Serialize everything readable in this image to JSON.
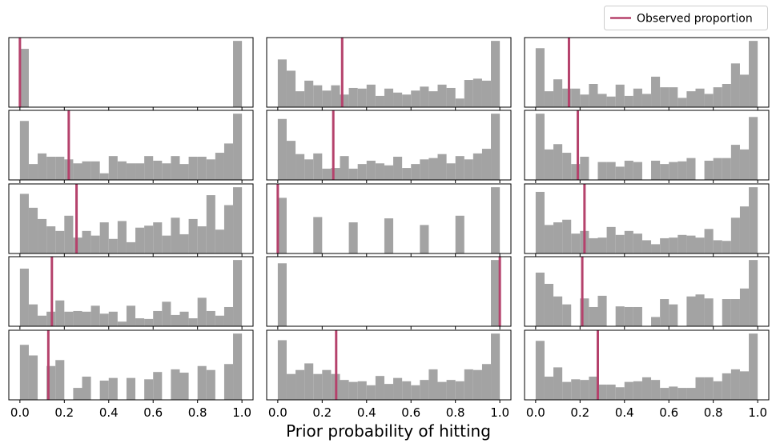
{
  "chart_data": {
    "type": "bar",
    "layout": "5 rows x 3 columns of histograms, shared x axis",
    "xlabel": "Prior probability of hitting",
    "ylabel": "",
    "xlim": [
      -0.05,
      1.05
    ],
    "ylim": [
      0,
      1.05
    ],
    "xticks": [
      0.0,
      0.2,
      0.4,
      0.6,
      0.8,
      1.0
    ],
    "xtick_labels": [
      "0.0",
      "0.2",
      "0.4",
      "0.6",
      "0.8",
      "1.0"
    ],
    "bin_edges_start": 0.0,
    "bin_width": 0.04,
    "bin_count": 25,
    "value_units": "bin height relative to the tallest bin in its panel (y axis unlabeled)",
    "legend": {
      "entries": [
        "Observed proportion"
      ],
      "placement": "top-right"
    },
    "colors": {
      "bars": "#a3a3a3",
      "observed_line": "#b5426c"
    },
    "panels": [
      {
        "row": 1,
        "col": 1,
        "observed": 0.0,
        "values": [
          0.88,
          0,
          0,
          0,
          0,
          0,
          0,
          0,
          0,
          0,
          0,
          0,
          0,
          0,
          0,
          0,
          0,
          0,
          0,
          0,
          0,
          0,
          0,
          0,
          1.0
        ]
      },
      {
        "row": 1,
        "col": 2,
        "observed": 0.29,
        "values": [
          0.72,
          0.55,
          0.24,
          0.4,
          0.33,
          0.25,
          0.33,
          0.19,
          0.29,
          0.28,
          0.34,
          0.17,
          0.28,
          0.22,
          0.19,
          0.25,
          0.31,
          0.24,
          0.34,
          0.29,
          0.13,
          0.41,
          0.43,
          0.4,
          1.0
        ]
      },
      {
        "row": 1,
        "col": 3,
        "observed": 0.15,
        "values": [
          0.89,
          0.24,
          0.42,
          0.28,
          0.28,
          0.19,
          0.35,
          0.2,
          0.16,
          0.34,
          0.17,
          0.28,
          0.2,
          0.46,
          0.3,
          0.3,
          0.14,
          0.24,
          0.28,
          0.2,
          0.3,
          0.35,
          0.66,
          0.49,
          1.0
        ]
      },
      {
        "row": 2,
        "col": 1,
        "observed": 0.22,
        "values": [
          0.89,
          0.24,
          0.4,
          0.35,
          0.35,
          0.31,
          0.25,
          0.28,
          0.28,
          0.1,
          0.36,
          0.28,
          0.25,
          0.25,
          0.36,
          0.29,
          0.25,
          0.36,
          0.24,
          0.35,
          0.35,
          0.31,
          0.41,
          0.55,
          1.0
        ]
      },
      {
        "row": 2,
        "col": 2,
        "observed": 0.25,
        "values": [
          0.92,
          0.59,
          0.39,
          0.31,
          0.4,
          0.17,
          0.18,
          0.36,
          0.17,
          0.24,
          0.29,
          0.25,
          0.22,
          0.35,
          0.18,
          0.24,
          0.31,
          0.33,
          0.39,
          0.25,
          0.36,
          0.31,
          0.4,
          0.47,
          1.0
        ]
      },
      {
        "row": 2,
        "col": 3,
        "observed": 0.19,
        "values": [
          1.0,
          0.46,
          0.54,
          0.41,
          0.24,
          0.35,
          0,
          0.27,
          0.27,
          0.2,
          0.29,
          0.27,
          0,
          0.29,
          0.24,
          0.27,
          0.28,
          0.33,
          0,
          0.29,
          0.33,
          0.33,
          0.53,
          0.46,
          0.95
        ]
      },
      {
        "row": 3,
        "col": 1,
        "observed": 0.255,
        "values": [
          0.9,
          0.69,
          0.52,
          0.41,
          0.34,
          0.57,
          0.24,
          0.34,
          0.27,
          0.47,
          0.22,
          0.49,
          0.17,
          0.39,
          0.42,
          0.47,
          0.27,
          0.54,
          0.29,
          0.52,
          0.41,
          0.88,
          0.36,
          0.73,
          1.0
        ]
      },
      {
        "row": 3,
        "col": 2,
        "observed": 0.0,
        "values": [
          0.84,
          0,
          0,
          0,
          0.55,
          0,
          0,
          0,
          0.47,
          0,
          0,
          0,
          0.53,
          0,
          0,
          0,
          0.43,
          0,
          0,
          0,
          0.57,
          0,
          0,
          0,
          1.0
        ]
      },
      {
        "row": 3,
        "col": 3,
        "observed": 0.22,
        "values": [
          0.93,
          0.43,
          0.47,
          0.51,
          0.3,
          0.34,
          0.23,
          0.24,
          0.4,
          0.28,
          0.34,
          0.3,
          0.2,
          0.14,
          0.23,
          0.24,
          0.28,
          0.27,
          0.24,
          0.37,
          0.2,
          0.19,
          0.54,
          0.71,
          1.0
        ]
      },
      {
        "row": 4,
        "col": 1,
        "observed": 0.144,
        "values": [
          0.87,
          0.33,
          0.16,
          0.22,
          0.39,
          0.22,
          0.23,
          0.22,
          0.31,
          0.19,
          0.22,
          0.07,
          0.31,
          0.12,
          0.11,
          0.23,
          0.37,
          0.17,
          0.22,
          0.12,
          0.43,
          0.23,
          0.16,
          0.29,
          1.0
        ]
      },
      {
        "row": 4,
        "col": 2,
        "observed": 1.0,
        "values": [
          0.95,
          0,
          0,
          0,
          0,
          0,
          0,
          0,
          0,
          0,
          0,
          0,
          0,
          0,
          0,
          0,
          0,
          0,
          0,
          0,
          0,
          0,
          0,
          0,
          1.0
        ]
      },
      {
        "row": 4,
        "col": 3,
        "observed": 0.21,
        "values": [
          0.81,
          0.64,
          0.45,
          0.33,
          0,
          0.42,
          0.29,
          0.46,
          0,
          0.3,
          0.29,
          0.29,
          0,
          0.14,
          0.41,
          0.33,
          0,
          0.45,
          0.48,
          0.42,
          0,
          0.41,
          0.41,
          0.57,
          1.0
        ]
      },
      {
        "row": 5,
        "col": 1,
        "observed": 0.128,
        "values": [
          0.83,
          0.67,
          0,
          0.51,
          0.6,
          0,
          0.18,
          0.35,
          0,
          0.29,
          0.33,
          0,
          0.33,
          0,
          0.31,
          0.42,
          0,
          0.46,
          0.41,
          0,
          0.51,
          0.45,
          0,
          0.54,
          1.0
        ]
      },
      {
        "row": 5,
        "col": 2,
        "observed": 0.263,
        "values": [
          0.9,
          0.39,
          0.45,
          0.55,
          0.39,
          0.45,
          0.39,
          0.3,
          0.27,
          0.28,
          0.22,
          0.36,
          0.24,
          0.33,
          0.28,
          0.22,
          0.3,
          0.46,
          0.27,
          0.3,
          0.28,
          0.46,
          0.45,
          0.54,
          1.0
        ]
      },
      {
        "row": 5,
        "col": 3,
        "observed": 0.28,
        "values": [
          0.89,
          0.35,
          0.49,
          0.27,
          0.31,
          0.3,
          0.35,
          0.23,
          0.23,
          0.19,
          0.27,
          0.28,
          0.34,
          0.3,
          0.18,
          0.2,
          0.18,
          0.18,
          0.34,
          0.34,
          0.28,
          0.4,
          0.46,
          0.43,
          1.0
        ]
      }
    ]
  }
}
